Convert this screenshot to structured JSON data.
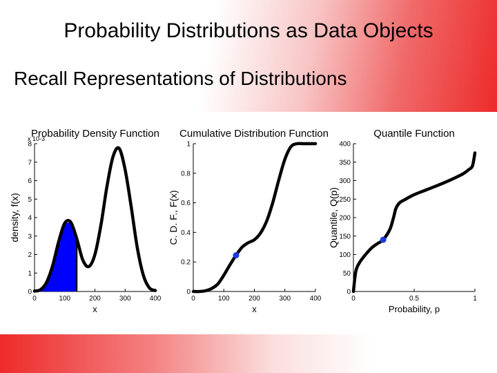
{
  "slide": {
    "title": "Probability Distributions as Data Objects",
    "subtitle": "Recall Representations of Distributions"
  },
  "colors": {
    "accent": "#ee2a2a",
    "fill": "#0000ff",
    "marker": "#1a3adf",
    "curve": "#000000"
  },
  "chart_data": [
    {
      "type": "area",
      "title": "Probability Density Function",
      "xlabel": "x",
      "ylabel": "density, f(x)",
      "y_scale_label": "x 10-3",
      "xlim": [
        0,
        400
      ],
      "ylim": [
        0,
        8
      ],
      "xticks": [
        "0",
        "100",
        "200",
        "300",
        "400"
      ],
      "yticks": [
        "0",
        "1",
        "2",
        "3",
        "4",
        "5",
        "6",
        "7",
        "8"
      ],
      "x": [
        0,
        20,
        40,
        60,
        80,
        100,
        120,
        140,
        160,
        180,
        200,
        220,
        240,
        260,
        280,
        300,
        320,
        340,
        360,
        380,
        400
      ],
      "values": [
        0.02,
        0.1,
        0.5,
        1.4,
        2.7,
        3.7,
        3.75,
        2.85,
        1.7,
        1.35,
        2.0,
        3.6,
        5.7,
        7.3,
        7.75,
        6.6,
        4.6,
        2.4,
        0.9,
        0.2,
        0.05
      ],
      "shaded_x_range": [
        0,
        140
      ]
    },
    {
      "type": "line",
      "title": "Cumulative Distribution Function",
      "xlabel": "x",
      "ylabel": "C. D. F., F(x)",
      "xlim": [
        0,
        400
      ],
      "ylim": [
        0,
        1.0
      ],
      "xticks": [
        "0",
        "100",
        "200",
        "300",
        "400"
      ],
      "yticks": [
        "0",
        "0.2",
        "0.4",
        "0.6",
        "0.8",
        "1"
      ],
      "x": [
        0,
        20,
        40,
        60,
        80,
        100,
        120,
        140,
        160,
        180,
        200,
        220,
        240,
        260,
        280,
        300,
        320,
        340,
        360,
        380,
        400
      ],
      "values": [
        0.0,
        0.0,
        0.005,
        0.02,
        0.05,
        0.11,
        0.18,
        0.245,
        0.3,
        0.33,
        0.35,
        0.395,
        0.475,
        0.6,
        0.755,
        0.895,
        0.98,
        1.0,
        1.0,
        1.0,
        1.0
      ],
      "marker": {
        "x": 140,
        "y": 0.245
      }
    },
    {
      "type": "line",
      "title": "Quantile Function",
      "xlabel": "Probability, p",
      "ylabel": "Quantile, Q(p)",
      "xlim": [
        0,
        1
      ],
      "ylim": [
        0,
        400
      ],
      "xticks": [
        "0",
        "0.5",
        "1"
      ],
      "yticks": [
        "0",
        "50",
        "100",
        "150",
        "200",
        "250",
        "300",
        "350",
        "400"
      ],
      "x": [
        0,
        0.02,
        0.05,
        0.1,
        0.15,
        0.2,
        0.245,
        0.3,
        0.33,
        0.35,
        0.38,
        0.42,
        0.5,
        0.6,
        0.7,
        0.8,
        0.9,
        0.95,
        0.98,
        1.0
      ],
      "values": [
        0,
        55,
        78,
        100,
        118,
        130,
        140,
        168,
        200,
        225,
        240,
        248,
        262,
        275,
        288,
        302,
        318,
        330,
        340,
        375
      ],
      "marker": {
        "x": 0.245,
        "y": 140
      }
    }
  ]
}
